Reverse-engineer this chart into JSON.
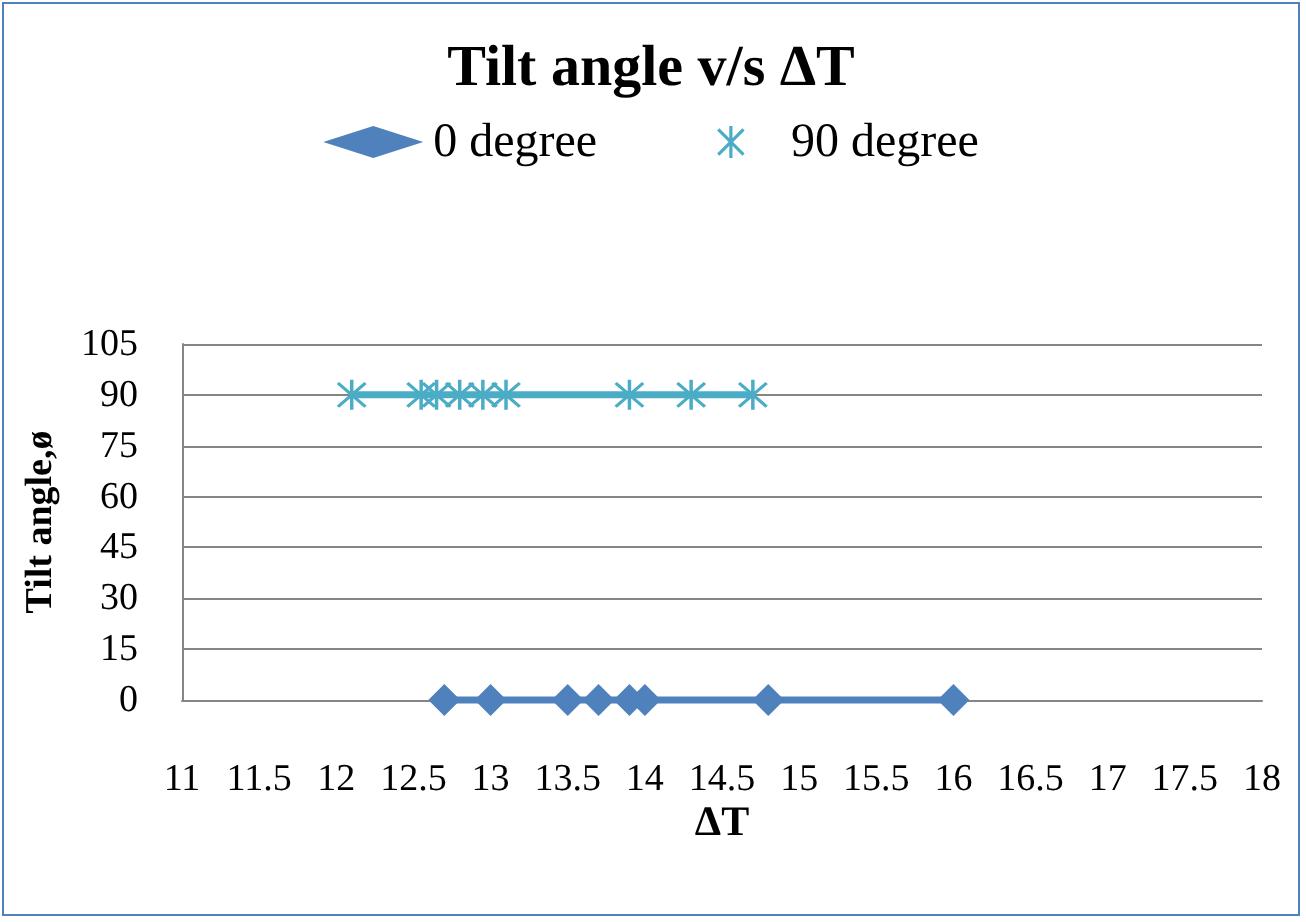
{
  "chart_data": {
    "type": "line",
    "title": "Tilt angle v/s ΔT",
    "xlabel": "ΔT",
    "ylabel": "Tilt angle,ø",
    "series": [
      {
        "name": "0 degree",
        "marker": "diamond",
        "color": "#4f81bd",
        "x": [
          12.7,
          13.0,
          13.5,
          13.7,
          13.9,
          14.0,
          14.8,
          16.0
        ],
        "values": [
          0,
          0,
          0,
          0,
          0,
          0,
          0,
          0
        ]
      },
      {
        "name": "90 degree",
        "marker": "cross",
        "color": "#4bacc6",
        "x": [
          12.1,
          12.55,
          12.65,
          12.8,
          12.95,
          13.1,
          13.9,
          14.3,
          14.7
        ],
        "values": [
          90,
          90,
          90,
          90,
          90,
          90,
          90,
          90,
          90
        ]
      }
    ],
    "xlim": [
      11,
      18
    ],
    "xticks": [
      11,
      11.5,
      12,
      12.5,
      13,
      13.5,
      14,
      14.5,
      15,
      15.5,
      16,
      16.5,
      17,
      17.5,
      18
    ],
    "ylim": [
      0,
      105
    ],
    "yticks": [
      0,
      15,
      30,
      45,
      60,
      75,
      90,
      105
    ],
    "grid": "y",
    "legend": "top"
  }
}
